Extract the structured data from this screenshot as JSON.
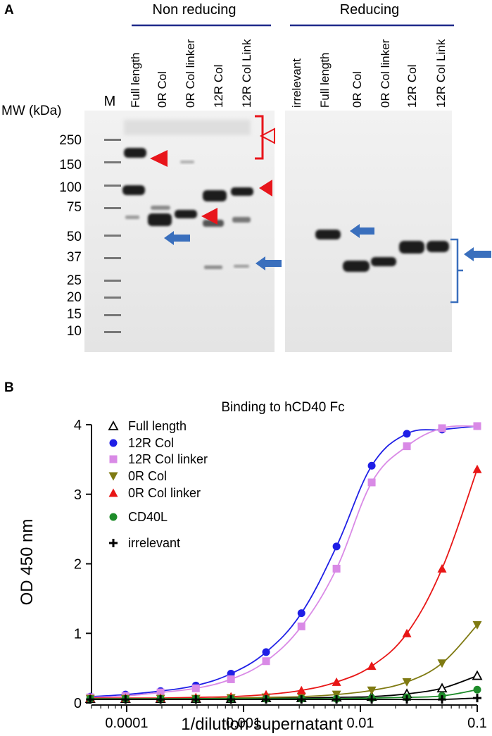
{
  "panel_a": {
    "label": "A",
    "group_nonreducing": "Non reducing",
    "group_reducing": "Reducing",
    "marker_lane": "M",
    "mw_title": "MW (kDa)",
    "mw_ticks": [
      "250",
      "150",
      "100",
      "75",
      "50",
      "37",
      "25",
      "20",
      "15",
      "10"
    ],
    "lanes_nonreducing": [
      "Full length",
      "0R Col",
      "0R Col linker",
      "12R Col",
      "12R Col Link"
    ],
    "lanes_reducing": [
      "irrelevant",
      "Full length",
      "0R Col",
      "0R Col linker",
      "12R Col",
      "12R Col Link"
    ],
    "colors": {
      "arrowhead": "#e8151b",
      "arrow": "#3a6fbd",
      "group_line": "#1f2a8a"
    }
  },
  "panel_b": {
    "label": "B",
    "colors": {
      "full_length": "#000000",
      "12r_col": "#1f1fe6",
      "12r_col_linker": "#d98ae6",
      "0r_col": "#7f7a12",
      "0r_col_linker": "#e81616",
      "cd40l": "#1e8c2a",
      "irrelevant": "#000000"
    }
  },
  "chart_data": {
    "type": "scatter",
    "title": "Binding to hCD40 Fc",
    "xlabel": "1/dilution supernatant",
    "ylabel": "OD 450 nm",
    "xscale": "log",
    "xlim": [
      5e-05,
      0.1
    ],
    "ylim": [
      0,
      4
    ],
    "xticks": [
      0.0001,
      0.001,
      0.01,
      0.1
    ],
    "xtick_labels": [
      "0.0001",
      "0.001",
      "0.01",
      "0.1"
    ],
    "yticks": [
      0,
      1,
      2,
      3,
      4
    ],
    "ytick_labels": [
      "0",
      "1",
      "2",
      "3",
      "4"
    ],
    "legend_position": "top-left",
    "x": [
      4.88e-05,
      9.77e-05,
      0.000195,
      0.000391,
      0.000781,
      0.00156,
      0.00313,
      0.00625,
      0.0125,
      0.025,
      0.05,
      0.1
    ],
    "series": [
      {
        "name": "Full length",
        "marker": "triangle-open",
        "values": [
          0.06,
          0.06,
          0.06,
          0.06,
          0.06,
          0.07,
          0.07,
          0.08,
          0.09,
          0.13,
          0.21,
          0.39
        ]
      },
      {
        "name": "12R Col",
        "marker": "circle",
        "values": [
          0.09,
          0.12,
          0.17,
          0.25,
          0.42,
          0.73,
          1.29,
          2.25,
          3.41,
          3.87,
          3.93,
          3.98
        ]
      },
      {
        "name": "12R Col linker",
        "marker": "square",
        "values": [
          0.08,
          0.1,
          0.15,
          0.21,
          0.34,
          0.6,
          1.1,
          1.93,
          3.17,
          3.69,
          3.95,
          3.98
        ]
      },
      {
        "name": "0R Col",
        "marker": "triangle-down",
        "values": [
          0.06,
          0.06,
          0.06,
          0.06,
          0.07,
          0.08,
          0.09,
          0.12,
          0.18,
          0.3,
          0.57,
          1.12
        ]
      },
      {
        "name": "0R Col linker",
        "marker": "triangle-up",
        "values": [
          0.07,
          0.07,
          0.07,
          0.08,
          0.09,
          0.12,
          0.18,
          0.3,
          0.53,
          1.0,
          1.93,
          3.36
        ]
      },
      {
        "name": "CD40L",
        "marker": "circle",
        "values": [
          0.06,
          0.06,
          0.06,
          0.06,
          0.06,
          0.06,
          0.06,
          0.06,
          0.07,
          0.08,
          0.1,
          0.19
        ]
      },
      {
        "name": "irrelevant",
        "marker": "plus",
        "values": [
          0.05,
          0.05,
          0.05,
          0.05,
          0.05,
          0.05,
          0.05,
          0.05,
          0.05,
          0.05,
          0.05,
          0.07
        ]
      }
    ]
  }
}
